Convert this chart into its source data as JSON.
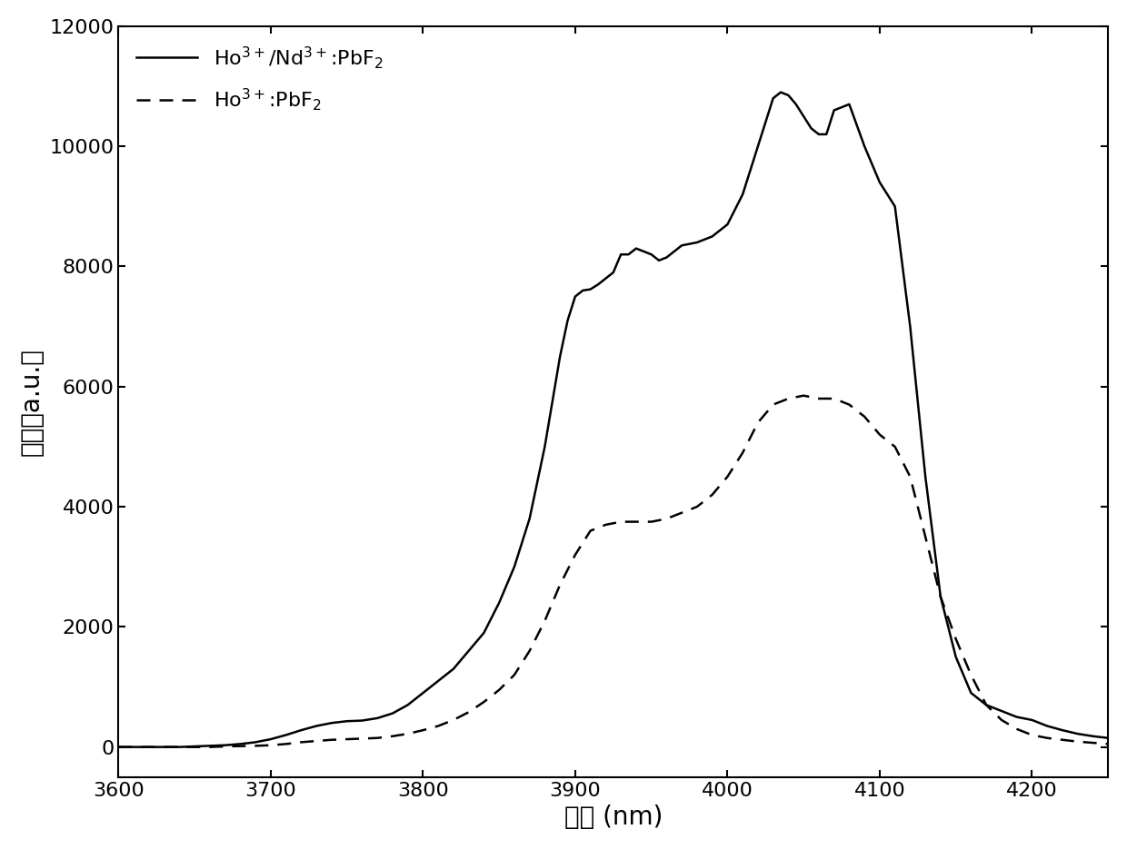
{
  "title": "",
  "xlabel": "波长 (nm)",
  "ylabel": "强度（a.u.）",
  "xlim": [
    3600,
    4250
  ],
  "ylim": [
    -500,
    12000
  ],
  "yticks": [
    0,
    2000,
    4000,
    6000,
    8000,
    10000,
    12000
  ],
  "xticks": [
    3600,
    3700,
    3800,
    3900,
    4000,
    4100,
    4200
  ],
  "legend1": "Ho$^{3+}$/Nd$^{3+}$:PbF$_2$",
  "legend2": "Ho$^{3+}$:PbF$_2$",
  "solid_x": [
    3600,
    3620,
    3640,
    3650,
    3660,
    3670,
    3680,
    3690,
    3700,
    3710,
    3720,
    3730,
    3740,
    3750,
    3760,
    3770,
    3780,
    3790,
    3800,
    3810,
    3820,
    3830,
    3840,
    3850,
    3860,
    3870,
    3880,
    3890,
    3895,
    3900,
    3905,
    3910,
    3915,
    3920,
    3925,
    3930,
    3935,
    3940,
    3945,
    3950,
    3955,
    3960,
    3970,
    3980,
    3990,
    4000,
    4010,
    4020,
    4030,
    4035,
    4040,
    4045,
    4050,
    4055,
    4060,
    4065,
    4070,
    4080,
    4090,
    4100,
    4110,
    4120,
    4130,
    4140,
    4150,
    4160,
    4170,
    4180,
    4190,
    4200,
    4210,
    4220,
    4230,
    4240,
    4250
  ],
  "solid_y": [
    0,
    0,
    0,
    10,
    20,
    30,
    50,
    80,
    130,
    200,
    280,
    350,
    400,
    430,
    440,
    480,
    560,
    700,
    900,
    1100,
    1300,
    1600,
    1900,
    2400,
    3000,
    3800,
    5000,
    6500,
    7100,
    7500,
    7600,
    7620,
    7700,
    7800,
    7900,
    8200,
    8200,
    8300,
    8250,
    8200,
    8100,
    8150,
    8350,
    8400,
    8500,
    8700,
    9200,
    10000,
    10800,
    10900,
    10850,
    10700,
    10500,
    10300,
    10200,
    10200,
    10600,
    10700,
    10000,
    9400,
    9000,
    7000,
    4500,
    2500,
    1500,
    900,
    700,
    600,
    500,
    450,
    350,
    280,
    220,
    180,
    150
  ],
  "dashed_x": [
    3600,
    3620,
    3640,
    3650,
    3660,
    3670,
    3680,
    3690,
    3700,
    3710,
    3720,
    3730,
    3740,
    3750,
    3760,
    3770,
    3780,
    3790,
    3800,
    3810,
    3820,
    3830,
    3840,
    3850,
    3860,
    3870,
    3880,
    3890,
    3900,
    3910,
    3920,
    3930,
    3940,
    3950,
    3960,
    3970,
    3980,
    3990,
    4000,
    4010,
    4020,
    4030,
    4040,
    4050,
    4060,
    4070,
    4080,
    4090,
    4100,
    4110,
    4120,
    4130,
    4140,
    4150,
    4160,
    4170,
    4180,
    4190,
    4200,
    4210,
    4220,
    4230,
    4240,
    4250
  ],
  "dashed_y": [
    0,
    0,
    0,
    0,
    0,
    10,
    15,
    20,
    30,
    50,
    80,
    100,
    120,
    130,
    140,
    150,
    180,
    220,
    280,
    350,
    450,
    580,
    750,
    950,
    1200,
    1600,
    2100,
    2700,
    3200,
    3600,
    3700,
    3750,
    3750,
    3750,
    3800,
    3900,
    4000,
    4200,
    4500,
    4900,
    5400,
    5700,
    5800,
    5850,
    5800,
    5800,
    5700,
    5500,
    5200,
    5000,
    4500,
    3500,
    2500,
    1800,
    1200,
    700,
    450,
    300,
    200,
    150,
    120,
    90,
    70,
    50
  ],
  "line_color": "#000000",
  "linewidth": 1.8,
  "background_color": "#ffffff",
  "tick_fontsize": 16,
  "label_fontsize": 20
}
